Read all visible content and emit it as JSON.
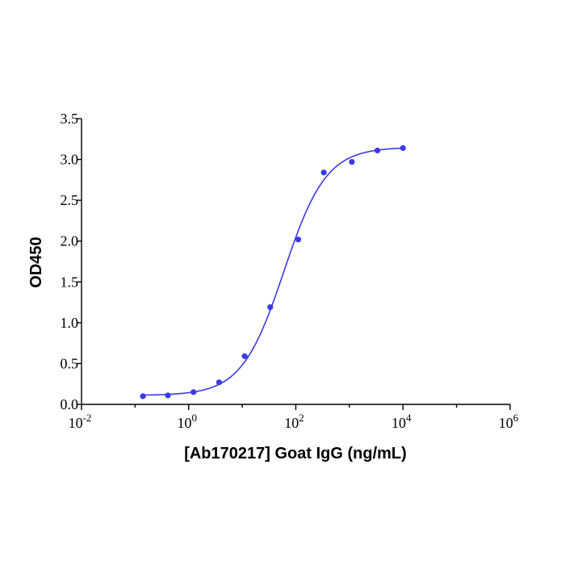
{
  "chart_data": {
    "type": "scatter",
    "xlabel": "[Ab170217] Goat IgG (ng/mL)",
    "ylabel": "OD450",
    "x_scale": "log10",
    "xlim": [
      0.01,
      1000000
    ],
    "ylim": [
      0,
      3.5
    ],
    "x_ticks": [
      {
        "base": "10",
        "exp": "-2",
        "value": 0.01
      },
      {
        "base": "10",
        "exp": "0",
        "value": 1
      },
      {
        "base": "10",
        "exp": "2",
        "value": 100
      },
      {
        "base": "10",
        "exp": "4",
        "value": 10000
      },
      {
        "base": "10",
        "exp": "6",
        "value": 1000000
      }
    ],
    "y_ticks": [
      {
        "label": "0.0",
        "value": 0.0
      },
      {
        "label": "0.5",
        "value": 0.5
      },
      {
        "label": "1.0",
        "value": 1.0
      },
      {
        "label": "1.5",
        "value": 1.5
      },
      {
        "label": "2.0",
        "value": 2.0
      },
      {
        "label": "2.5",
        "value": 2.5
      },
      {
        "label": "3.0",
        "value": 3.0
      },
      {
        "label": "3.5",
        "value": 3.5
      }
    ],
    "grid": false,
    "series": [
      {
        "color": "#3a3ae6",
        "points": [
          {
            "x": 0.14,
            "y": 0.1
          },
          {
            "x": 0.41,
            "y": 0.11
          },
          {
            "x": 1.23,
            "y": 0.15
          },
          {
            "x": 3.7,
            "y": 0.27
          },
          {
            "x": 11.1,
            "y": 0.59
          },
          {
            "x": 33.3,
            "y": 1.19
          },
          {
            "x": 111,
            "y": 2.02
          },
          {
            "x": 333,
            "y": 2.84
          },
          {
            "x": 1111,
            "y": 2.97
          },
          {
            "x": 3333,
            "y": 3.11
          },
          {
            "x": 10000,
            "y": 3.14
          }
        ],
        "fit": {
          "model": "4PL",
          "bottom": 0.11,
          "top": 3.15,
          "ec50": 60,
          "hill": 1.1
        }
      }
    ]
  }
}
